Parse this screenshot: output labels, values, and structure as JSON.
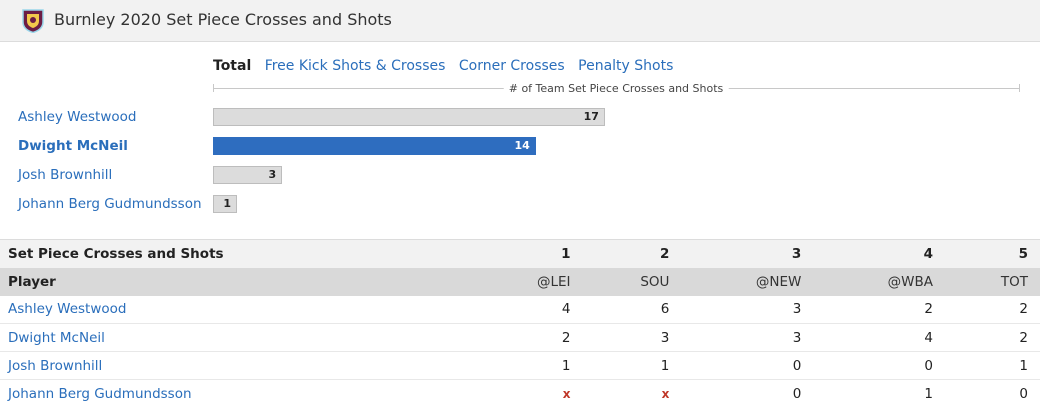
{
  "header": {
    "title": "Burnley 2020 Set Piece Crosses and Shots"
  },
  "tabs": [
    {
      "label": "Total",
      "active": true
    },
    {
      "label": "Free Kick Shots & Crosses",
      "active": false
    },
    {
      "label": "Corner Crosses",
      "active": false
    },
    {
      "label": "Penalty Shots",
      "active": false
    }
  ],
  "colors": {
    "link": "#2a6ebb",
    "highlight_bar": "#2e6dbf",
    "bar": "#dcdcdc",
    "missing": "#c0392b"
  },
  "chart_data": {
    "type": "bar",
    "orientation": "horizontal",
    "axis_title": "# of Team Set Piece Crosses and Shots",
    "categories": [
      "Ashley Westwood",
      "Dwight McNeil",
      "Josh Brownhill",
      "Johann Berg Gudmundsson"
    ],
    "values": [
      17,
      14,
      3,
      1
    ],
    "highlighted": "Dwight McNeil",
    "xlim": [
      0,
      35
    ]
  },
  "table": {
    "title": "Set Piece Crosses and Shots",
    "player_header": "Player",
    "rounds": [
      "1",
      "2",
      "3",
      "4",
      "5"
    ],
    "opponents": [
      "@LEI",
      "SOU",
      "@NEW",
      "@WBA",
      "TOT"
    ],
    "rows": [
      {
        "player": "Ashley Westwood",
        "values": [
          "4",
          "6",
          "3",
          "2",
          "2"
        ]
      },
      {
        "player": "Dwight McNeil",
        "values": [
          "2",
          "3",
          "3",
          "4",
          "2"
        ]
      },
      {
        "player": "Josh Brownhill",
        "values": [
          "1",
          "1",
          "0",
          "0",
          "1"
        ]
      },
      {
        "player": "Johann Berg Gudmundsson",
        "values": [
          "x",
          "x",
          "0",
          "1",
          "0"
        ]
      }
    ]
  }
}
